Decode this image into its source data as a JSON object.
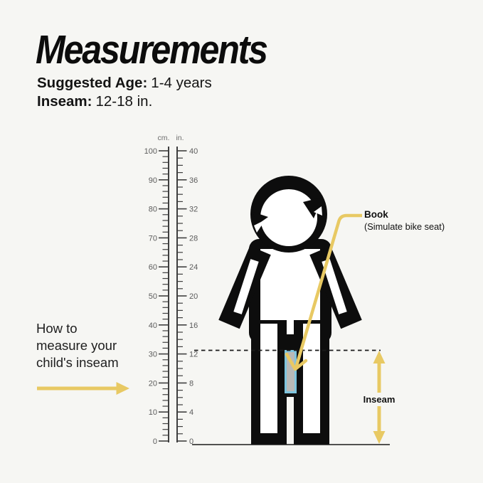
{
  "header": {
    "title": "Measurements",
    "specs": [
      {
        "label": "Suggested Age:",
        "value": "1-4 years"
      },
      {
        "label": "Inseam:",
        "value": "12-18 in."
      }
    ]
  },
  "ruler": {
    "cm_unit_label": "cm.",
    "in_unit_label": "in.",
    "cm_range": [
      0,
      100
    ],
    "in_range": [
      0,
      40
    ],
    "cm_tick_labels": [
      100,
      90,
      80,
      70,
      60,
      50,
      40,
      30,
      20,
      10,
      0
    ],
    "in_tick_labels": [
      40,
      36,
      32,
      28,
      24,
      20,
      16,
      12,
      8,
      4,
      0
    ],
    "cm_minor_step": 2,
    "in_minor_step": 1
  },
  "annotations": {
    "book": {
      "label": "Book",
      "sublabel": "(Simulate bike seat)"
    },
    "inseam": {
      "label": "Inseam"
    },
    "howto": {
      "lines": [
        "How to",
        "measure your",
        "child's inseam"
      ]
    },
    "inseam_line_inches": 12.5
  },
  "figure": {
    "icon": "child-pictogram-with-book-between-legs"
  },
  "colors": {
    "background": "#f6f6f3",
    "ink": "#0d0d0d",
    "accent_yellow": "#e8c963",
    "book_border_blue": "#7ec5de",
    "book_fill_gray": "#b9b9b7",
    "ruler_line": "#3f3f3f",
    "ruler_text": "#5c5c5c",
    "ruler_unit_text": "#6d6d6d"
  }
}
